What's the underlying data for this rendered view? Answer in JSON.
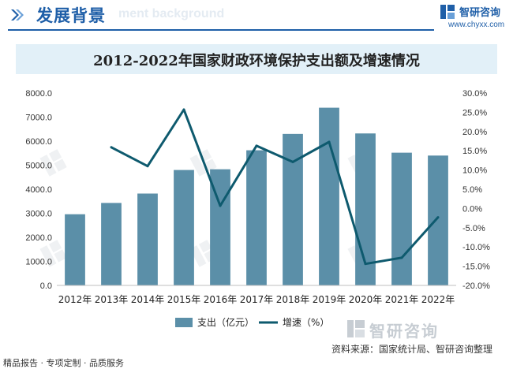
{
  "header": {
    "title": "发展背景",
    "watermark": "ment background",
    "brand_name": "智研咨询",
    "brand_url": "www.chyxx.com"
  },
  "chart_data": {
    "type": "bar",
    "title": "2012-2022年国家财政环境保护支出额及增速情况",
    "categories": [
      "2012年",
      "2013年",
      "2014年",
      "2015年",
      "2016年",
      "2017年",
      "2018年",
      "2019年",
      "2020年",
      "2021年",
      "2022年"
    ],
    "series": [
      {
        "name": "支出（亿元）",
        "type": "bar",
        "axis": "left",
        "color": "#5b8fa8",
        "values": [
          2960,
          3430,
          3820,
          4800,
          4830,
          5620,
          6300,
          7390,
          6320,
          5520,
          5400
        ]
      },
      {
        "name": "增速（%）",
        "type": "line",
        "axis": "right",
        "color": "#0e5a6e",
        "values": [
          null,
          15.9,
          11.0,
          25.7,
          0.7,
          16.3,
          12.1,
          17.3,
          -14.4,
          -12.8,
          -2.3
        ]
      }
    ],
    "y_left": {
      "min": 0,
      "max": 8000,
      "step": 1000,
      "ticks": [
        "0.0",
        "1000.0",
        "2000.0",
        "3000.0",
        "4000.0",
        "5000.0",
        "6000.0",
        "7000.0",
        "8000.0"
      ]
    },
    "y_right": {
      "min": -20,
      "max": 30,
      "step": 5,
      "ticks": [
        "-20.0%",
        "-15.0%",
        "-10.0%",
        "-5.0%",
        "0.0%",
        "5.0%",
        "10.0%",
        "15.0%",
        "20.0%",
        "25.0%",
        "30.0%"
      ]
    },
    "grid": false,
    "legend_position": "bottom"
  },
  "footer": {
    "left_text": "精品报告 · 专项定制 · 品质服务",
    "right_text": "资料来源：国家统计局、智研咨询整理",
    "brand": "智研咨询"
  }
}
